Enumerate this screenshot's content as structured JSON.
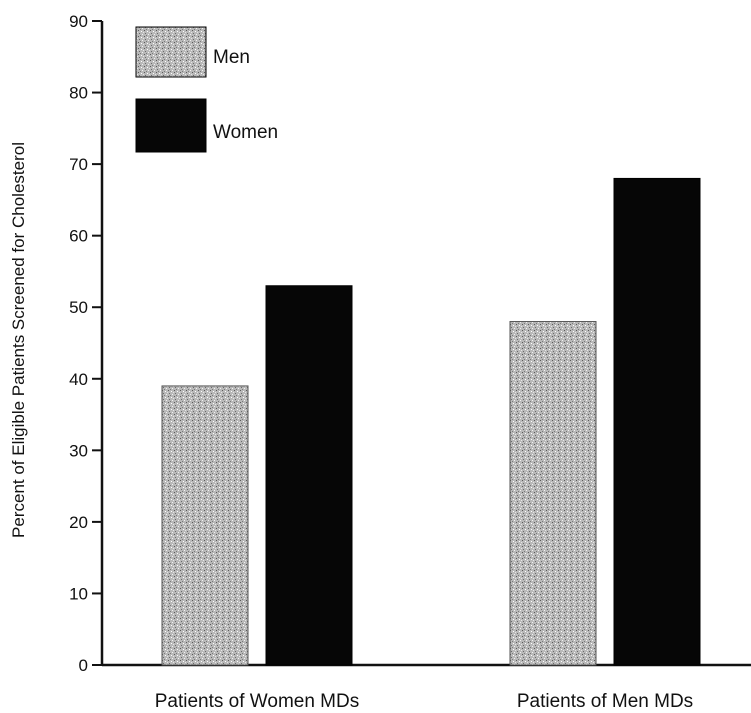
{
  "chart_data": {
    "type": "bar",
    "title": "",
    "xlabel": "",
    "ylabel": "Percent of Eligible Patients Screened for Cholesterol",
    "ylim": [
      0,
      90
    ],
    "yticks": [
      0,
      10,
      20,
      30,
      40,
      50,
      60,
      70,
      80,
      90
    ],
    "categories": [
      "Patients of Women MDs",
      "Patients of Men MDs"
    ],
    "series": [
      {
        "name": "Men",
        "values": [
          39,
          48
        ],
        "color": "#b8b8b8",
        "pattern": "stipple"
      },
      {
        "name": "Women",
        "values": [
          53,
          68
        ],
        "color": "#050505",
        "pattern": "solid"
      }
    ],
    "grid": false,
    "legend_position": "top-left"
  }
}
